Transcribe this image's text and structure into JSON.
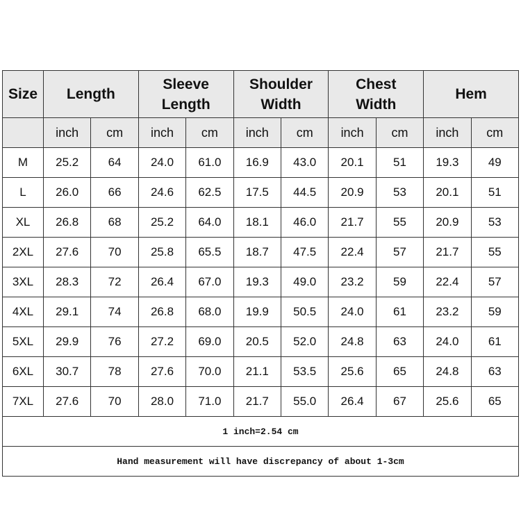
{
  "headers": {
    "size": "Size",
    "groups": [
      "Length",
      "Sleeve Length",
      "Shoulder Width",
      "Chest Width",
      "Hem"
    ]
  },
  "units": [
    "inch",
    "cm"
  ],
  "rows": [
    {
      "size": "M",
      "values": [
        "25.2",
        "64",
        "24.0",
        "61.0",
        "16.9",
        "43.0",
        "20.1",
        "51",
        "19.3",
        "49"
      ]
    },
    {
      "size": "L",
      "values": [
        "26.0",
        "66",
        "24.6",
        "62.5",
        "17.5",
        "44.5",
        "20.9",
        "53",
        "20.1",
        "51"
      ]
    },
    {
      "size": "XL",
      "values": [
        "26.8",
        "68",
        "25.2",
        "64.0",
        "18.1",
        "46.0",
        "21.7",
        "55",
        "20.9",
        "53"
      ]
    },
    {
      "size": "2XL",
      "values": [
        "27.6",
        "70",
        "25.8",
        "65.5",
        "18.7",
        "47.5",
        "22.4",
        "57",
        "21.7",
        "55"
      ]
    },
    {
      "size": "3XL",
      "values": [
        "28.3",
        "72",
        "26.4",
        "67.0",
        "19.3",
        "49.0",
        "23.2",
        "59",
        "22.4",
        "57"
      ]
    },
    {
      "size": "4XL",
      "values": [
        "29.1",
        "74",
        "26.8",
        "68.0",
        "19.9",
        "50.5",
        "24.0",
        "61",
        "23.2",
        "59"
      ]
    },
    {
      "size": "5XL",
      "values": [
        "29.9",
        "76",
        "27.2",
        "69.0",
        "20.5",
        "52.0",
        "24.8",
        "63",
        "24.0",
        "61"
      ]
    },
    {
      "size": "6XL",
      "values": [
        "30.7",
        "78",
        "27.6",
        "70.0",
        "21.1",
        "53.5",
        "25.6",
        "65",
        "24.8",
        "63"
      ]
    },
    {
      "size": "7XL",
      "values": [
        "27.6",
        "70",
        "28.0",
        "71.0",
        "21.7",
        "55.0",
        "26.4",
        "67",
        "25.6",
        "65"
      ]
    }
  ],
  "notes": {
    "conversion": "1 inch=2.54 cm",
    "disclaimer": "Hand measurement will have discrepancy of about 1-3cm"
  },
  "colors": {
    "header_bg": "#e9e9e9",
    "border": "#333333"
  }
}
